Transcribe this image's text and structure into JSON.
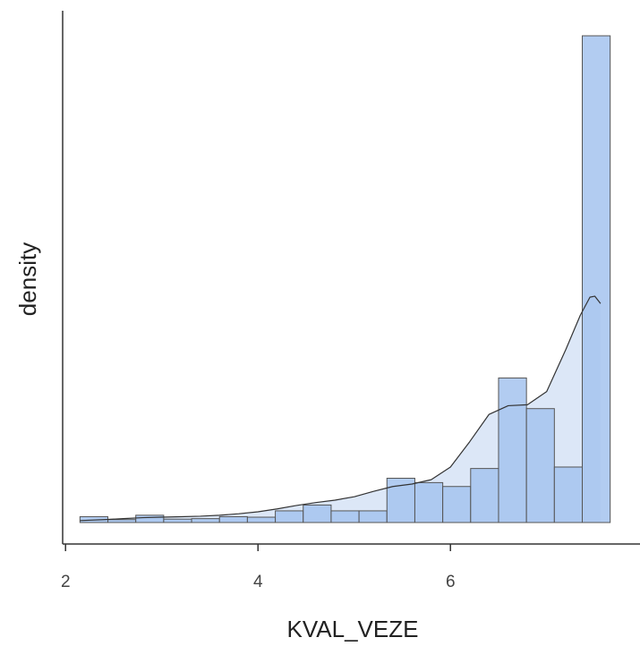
{
  "chart_data": {
    "type": "histogram",
    "xlabel": "KVAL_VEZE",
    "ylabel": "density",
    "xlim": [
      1.97,
      7.97
    ],
    "ylim": [
      0,
      1.0
    ],
    "x_ticks": [
      2,
      4,
      6
    ],
    "x_tick_labels": [
      "2",
      "4",
      "6"
    ],
    "y_ticks_shown": false,
    "grid": false,
    "bar_color": "#a5c3ee",
    "bar_outline_color": "#555555",
    "density_fill_color": "#dce7f7",
    "density_line_color": "#333333",
    "bins": [
      {
        "x0": 2.15,
        "x1": 2.44,
        "value": 0.012
      },
      {
        "x0": 2.44,
        "x1": 2.73,
        "value": 0.006
      },
      {
        "x0": 2.73,
        "x1": 3.02,
        "value": 0.015
      },
      {
        "x0": 3.02,
        "x1": 3.31,
        "value": 0.007
      },
      {
        "x0": 3.31,
        "x1": 3.6,
        "value": 0.008
      },
      {
        "x0": 3.6,
        "x1": 3.89,
        "value": 0.012
      },
      {
        "x0": 3.89,
        "x1": 4.18,
        "value": 0.011
      },
      {
        "x0": 4.18,
        "x1": 4.47,
        "value": 0.024
      },
      {
        "x0": 4.47,
        "x1": 4.76,
        "value": 0.036
      },
      {
        "x0": 4.76,
        "x1": 5.05,
        "value": 0.024
      },
      {
        "x0": 5.05,
        "x1": 5.34,
        "value": 0.024
      },
      {
        "x0": 5.34,
        "x1": 5.63,
        "value": 0.091
      },
      {
        "x0": 5.63,
        "x1": 5.92,
        "value": 0.082
      },
      {
        "x0": 5.92,
        "x1": 6.21,
        "value": 0.074
      },
      {
        "x0": 6.21,
        "x1": 6.5,
        "value": 0.111
      },
      {
        "x0": 6.5,
        "x1": 6.79,
        "value": 0.297
      },
      {
        "x0": 6.79,
        "x1": 7.08,
        "value": 0.234
      },
      {
        "x0": 7.08,
        "x1": 7.37,
        "value": 0.114
      },
      {
        "x0": 7.37,
        "x1": 7.66,
        "value": 1.0
      }
    ],
    "density": {
      "x": [
        2.15,
        2.4,
        2.6,
        2.8,
        3.0,
        3.2,
        3.4,
        3.6,
        3.8,
        4.0,
        4.2,
        4.4,
        4.6,
        4.8,
        5.0,
        5.2,
        5.4,
        5.6,
        5.8,
        6.0,
        6.2,
        6.4,
        6.6,
        6.8,
        7.0,
        7.2,
        7.35,
        7.45,
        7.5,
        7.56
      ],
      "y": [
        0.004,
        0.006,
        0.008,
        0.01,
        0.011,
        0.012,
        0.013,
        0.015,
        0.018,
        0.022,
        0.028,
        0.035,
        0.041,
        0.046,
        0.053,
        0.064,
        0.074,
        0.079,
        0.088,
        0.114,
        0.166,
        0.222,
        0.24,
        0.242,
        0.269,
        0.356,
        0.426,
        0.463,
        0.465,
        0.45
      ]
    }
  }
}
